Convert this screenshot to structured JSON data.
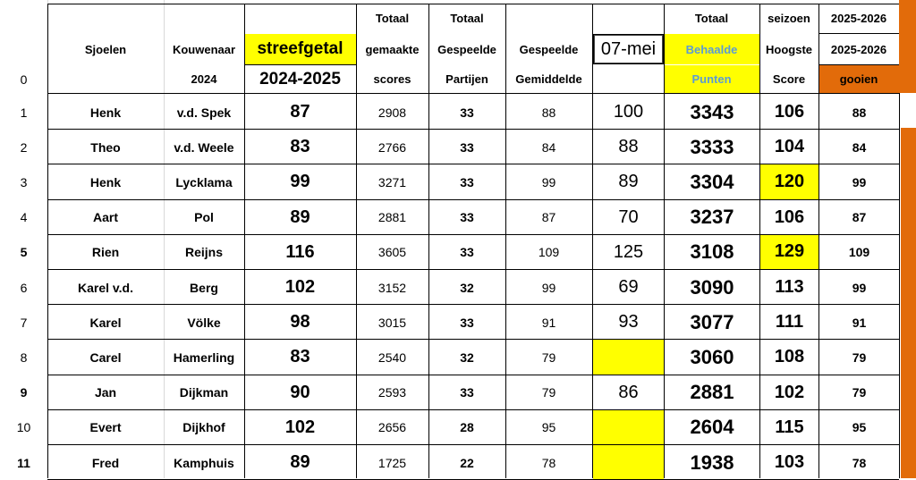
{
  "header": {
    "row1": {
      "totaal1": "Totaal",
      "totaal2": "Totaal",
      "totaal3": "Totaal",
      "seizoen": "seizoen",
      "season_a": "2025-2026"
    },
    "row2": {
      "sjoelen": "Sjoelen",
      "kouwenaar": "Kouwenaar",
      "streefgetal": "streefgetal",
      "gemaakte": "gemaakte",
      "gespeelde1": "Gespeelde",
      "gespeelde2": "Gespeelde",
      "date_value": "07-mei",
      "behaalde": "Behaalde",
      "hoogste": "Hoogste",
      "season_b": "2025-2026"
    },
    "row3": {
      "zero": "0",
      "year": "2024",
      "season": "2024-2025",
      "scores": "scores",
      "partijen": "Partijen",
      "gemiddelde": "Gemiddelde",
      "punten": "Punten",
      "score": "Score",
      "gooien": "gooien"
    }
  },
  "rows": [
    {
      "n": "1",
      "first": "Henk",
      "last": "v.d. Spek",
      "target": "87",
      "made": "2908",
      "played": "33",
      "avg": "88",
      "today": "100",
      "points": "3343",
      "high": "106",
      "gooien": "88"
    },
    {
      "n": "2",
      "first": "Theo",
      "last": "v.d. Weele",
      "target": "83",
      "made": "2766",
      "played": "33",
      "avg": "84",
      "today": "88",
      "points": "3333",
      "high": "104",
      "gooien": "84"
    },
    {
      "n": "3",
      "first": "Henk",
      "last": "Lycklama",
      "target": "99",
      "made": "3271",
      "played": "33",
      "avg": "99",
      "today": "89",
      "points": "3304",
      "high": "120",
      "gooien": "99"
    },
    {
      "n": "4",
      "first": "Aart",
      "last": "Pol",
      "target": "89",
      "made": "2881",
      "played": "33",
      "avg": "87",
      "today": "70",
      "points": "3237",
      "high": "106",
      "gooien": "87"
    },
    {
      "n": "5",
      "first": "Rien",
      "last": "Reijns",
      "target": "116",
      "made": "3605",
      "played": "33",
      "avg": "109",
      "today": "125",
      "points": "3108",
      "high": "129",
      "gooien": "109"
    },
    {
      "n": "6",
      "first": "Karel v.d.",
      "last": "Berg",
      "target": "102",
      "made": "3152",
      "played": "32",
      "avg": "99",
      "today": "69",
      "points": "3090",
      "high": "113",
      "gooien": "99"
    },
    {
      "n": "7",
      "first": "Karel",
      "last": "Völke",
      "target": "98",
      "made": "3015",
      "played": "33",
      "avg": "91",
      "today": "93",
      "points": "3077",
      "high": "111",
      "gooien": "91"
    },
    {
      "n": "8",
      "first": "Carel",
      "last": "Hamerling",
      "target": "83",
      "made": "2540",
      "played": "32",
      "avg": "79",
      "today": "",
      "points": "3060",
      "high": "108",
      "gooien": "79"
    },
    {
      "n": "9",
      "first": "Jan",
      "last": "Dijkman",
      "target": "90",
      "made": "2593",
      "played": "33",
      "avg": "79",
      "today": "86",
      "points": "2881",
      "high": "102",
      "gooien": "79"
    },
    {
      "n": "10",
      "first": "Evert",
      "last": "Dijkhof",
      "target": "102",
      "made": "2656",
      "played": "28",
      "avg": "95",
      "today": "",
      "points": "2604",
      "high": "115",
      "gooien": "95"
    },
    {
      "n": "11",
      "first": "Fred",
      "last": "Kamphuis",
      "target": "89",
      "made": "1725",
      "played": "22",
      "avg": "78",
      "today": "",
      "points": "1938",
      "high": "103",
      "gooien": "78"
    }
  ],
  "colors": {
    "yellow": "#ffff00",
    "orange": "#e26b0a",
    "behaalde_text": "#5b9bd5",
    "gridline": "#d9d9d9"
  }
}
